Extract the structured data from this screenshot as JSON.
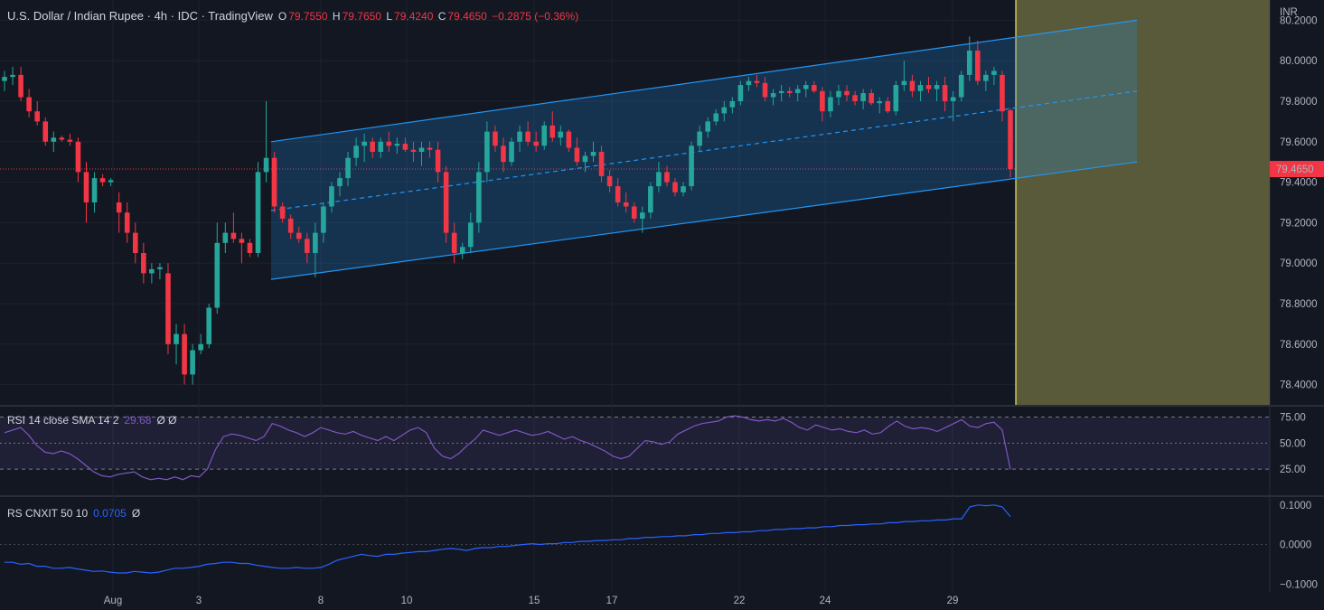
{
  "header": {
    "title": "U.S. Dollar / Indian Rupee · 4h · IDC · TradingView",
    "ohlc": [
      {
        "k": "O",
        "v": "79.7550"
      },
      {
        "k": "H",
        "v": "79.7650"
      },
      {
        "k": "L",
        "v": "79.4240"
      },
      {
        "k": "C",
        "v": "79.4650"
      }
    ],
    "change": "−0.2875 (−0.36%)"
  },
  "price_scale": {
    "currency": "INR",
    "current_price_label": "79.4650",
    "ticks": [
      "80.2000",
      "80.0000",
      "79.8000",
      "79.6000",
      "79.4000",
      "79.2000",
      "79.0000",
      "78.8000",
      "78.6000",
      "78.4000"
    ]
  },
  "rsi_panel": {
    "label": "RSI 14 close SMA 14 2",
    "value": "29.68",
    "extra": "Ø Ø",
    "ticks": [
      "75.00",
      "50.00",
      "25.00"
    ]
  },
  "rs_panel": {
    "label": "RS CNXIT 50 10",
    "value": "0.0705",
    "extra": "Ø",
    "ticks": [
      "0.1000",
      "0.0000",
      "−0.1000"
    ]
  },
  "colors": {
    "background": "#131722",
    "up": "#26a69a",
    "down": "#f23645",
    "channel": "#2196f3",
    "rsi": "#7e57c2",
    "rs": "#2962ff",
    "projection": "#5d5e3c",
    "cursor": "#f5e663"
  },
  "chart_data": [
    {
      "type": "candlestick",
      "title": "U.S. Dollar / Indian Rupee · 4h · IDC · TradingView",
      "x_ticks": [
        "Aug",
        "3",
        "8",
        "10",
        "15",
        "17",
        "22",
        "24",
        "29"
      ],
      "ylim": [
        78.3,
        80.3
      ],
      "current_price": 79.465,
      "candles": [
        [
          79.9,
          79.95,
          79.85,
          79.92
        ],
        [
          79.92,
          79.97,
          79.88,
          79.93
        ],
        [
          79.93,
          79.97,
          79.8,
          79.82
        ],
        [
          79.82,
          79.86,
          79.72,
          79.75
        ],
        [
          79.75,
          79.8,
          79.68,
          79.7
        ],
        [
          79.7,
          79.72,
          79.58,
          79.6
        ],
        [
          79.6,
          79.65,
          79.55,
          79.62
        ],
        [
          79.62,
          79.63,
          79.6,
          79.61
        ],
        [
          79.61,
          79.64,
          79.58,
          79.6
        ],
        [
          79.6,
          79.62,
          79.4,
          79.45
        ],
        [
          79.45,
          79.5,
          79.2,
          79.3
        ],
        [
          79.3,
          79.45,
          79.25,
          79.42
        ],
        [
          79.42,
          79.44,
          79.38,
          79.4
        ],
        [
          79.4,
          79.42,
          79.38,
          79.41
        ],
        [
          79.3,
          79.35,
          79.15,
          79.25
        ],
        [
          79.25,
          79.3,
          79.1,
          79.15
        ],
        [
          79.15,
          79.2,
          79.0,
          79.05
        ],
        [
          79.05,
          79.1,
          78.9,
          78.95
        ],
        [
          78.95,
          79.0,
          78.9,
          78.97
        ],
        [
          78.97,
          79.0,
          78.92,
          78.98
        ],
        [
          78.95,
          79.0,
          78.55,
          78.6
        ],
        [
          78.6,
          78.7,
          78.5,
          78.65
        ],
        [
          78.65,
          78.7,
          78.4,
          78.45
        ],
        [
          78.45,
          78.6,
          78.4,
          78.57
        ],
        [
          78.57,
          78.65,
          78.55,
          78.6
        ],
        [
          78.6,
          78.8,
          78.58,
          78.78
        ],
        [
          78.78,
          79.2,
          78.75,
          79.1
        ],
        [
          79.1,
          79.2,
          79.05,
          79.15
        ],
        [
          79.15,
          79.25,
          79.1,
          79.12
        ],
        [
          79.12,
          79.15,
          79.0,
          79.1
        ],
        [
          79.1,
          79.12,
          79.03,
          79.05
        ],
        [
          79.05,
          79.5,
          79.03,
          79.45
        ],
        [
          79.45,
          79.8,
          79.4,
          79.52
        ],
        [
          79.52,
          79.55,
          79.25,
          79.28
        ],
        [
          79.28,
          79.3,
          79.2,
          79.22
        ],
        [
          79.22,
          79.24,
          79.12,
          79.15
        ],
        [
          79.15,
          79.18,
          79.1,
          79.12
        ],
        [
          79.12,
          79.15,
          79.0,
          79.05
        ],
        [
          79.05,
          79.2,
          78.93,
          79.15
        ],
        [
          79.15,
          79.3,
          79.1,
          79.28
        ],
        [
          79.28,
          79.4,
          79.25,
          79.38
        ],
        [
          79.38,
          79.45,
          79.33,
          79.42
        ],
        [
          79.42,
          79.55,
          79.38,
          79.52
        ],
        [
          79.52,
          79.62,
          79.48,
          79.58
        ],
        [
          79.58,
          79.64,
          79.5,
          79.6
        ],
        [
          79.6,
          79.62,
          79.52,
          79.55
        ],
        [
          79.55,
          79.62,
          79.52,
          79.6
        ],
        [
          79.6,
          79.65,
          79.55,
          79.58
        ],
        [
          79.58,
          79.62,
          79.54,
          79.59
        ],
        [
          79.59,
          79.62,
          79.55,
          79.56
        ],
        [
          79.56,
          79.6,
          79.5,
          79.55
        ],
        [
          79.55,
          79.6,
          79.48,
          79.57
        ],
        [
          79.57,
          79.6,
          79.52,
          79.56
        ],
        [
          79.56,
          79.6,
          79.4,
          79.45
        ],
        [
          79.45,
          79.48,
          79.1,
          79.15
        ],
        [
          79.15,
          79.2,
          79.0,
          79.05
        ],
        [
          79.05,
          79.1,
          79.02,
          79.08
        ],
        [
          79.08,
          79.25,
          79.05,
          79.2
        ],
        [
          79.2,
          79.5,
          79.15,
          79.45
        ],
        [
          79.45,
          79.7,
          79.4,
          79.65
        ],
        [
          79.65,
          79.68,
          79.55,
          79.58
        ],
        [
          79.58,
          79.62,
          79.45,
          79.5
        ],
        [
          79.5,
          79.62,
          79.48,
          79.6
        ],
        [
          79.6,
          79.68,
          79.55,
          79.65
        ],
        [
          79.65,
          79.7,
          79.58,
          79.6
        ],
        [
          79.6,
          79.65,
          79.55,
          79.58
        ],
        [
          79.58,
          79.7,
          79.56,
          79.68
        ],
        [
          79.68,
          79.75,
          79.6,
          79.62
        ],
        [
          79.62,
          79.68,
          79.58,
          79.65
        ],
        [
          79.65,
          79.66,
          79.55,
          79.57
        ],
        [
          79.57,
          79.62,
          79.48,
          79.5
        ],
        [
          79.5,
          79.55,
          79.45,
          79.53
        ],
        [
          79.53,
          79.6,
          79.5,
          79.55
        ],
        [
          79.55,
          79.58,
          79.4,
          79.43
        ],
        [
          79.43,
          79.46,
          79.35,
          79.38
        ],
        [
          79.38,
          79.42,
          79.28,
          79.3
        ],
        [
          79.3,
          79.35,
          79.25,
          79.28
        ],
        [
          79.28,
          79.3,
          79.2,
          79.22
        ],
        [
          79.22,
          79.28,
          79.15,
          79.25
        ],
        [
          79.25,
          79.4,
          79.22,
          79.38
        ],
        [
          79.38,
          79.5,
          79.35,
          79.45
        ],
        [
          79.45,
          79.48,
          79.38,
          79.4
        ],
        [
          79.4,
          79.42,
          79.33,
          79.35
        ],
        [
          79.35,
          79.4,
          79.33,
          79.38
        ],
        [
          79.38,
          79.6,
          79.36,
          79.58
        ],
        [
          79.58,
          79.68,
          79.55,
          79.65
        ],
        [
          79.65,
          79.72,
          79.62,
          79.7
        ],
        [
          79.7,
          79.76,
          79.68,
          79.74
        ],
        [
          79.74,
          79.8,
          79.7,
          79.77
        ],
        [
          79.77,
          79.82,
          79.74,
          79.8
        ],
        [
          79.8,
          79.9,
          79.78,
          79.88
        ],
        [
          79.88,
          79.92,
          79.85,
          79.9
        ],
        [
          79.9,
          79.93,
          79.87,
          79.89
        ],
        [
          79.89,
          79.92,
          79.8,
          79.82
        ],
        [
          79.82,
          79.86,
          79.78,
          79.84
        ],
        [
          79.84,
          79.88,
          79.8,
          79.85
        ],
        [
          79.85,
          79.87,
          79.82,
          79.84
        ],
        [
          79.84,
          79.88,
          79.8,
          79.86
        ],
        [
          79.86,
          79.9,
          79.82,
          79.88
        ],
        [
          79.88,
          79.9,
          79.84,
          79.85
        ],
        [
          79.85,
          79.87,
          79.7,
          79.75
        ],
        [
          79.75,
          79.85,
          79.72,
          79.82
        ],
        [
          79.82,
          79.88,
          79.78,
          79.85
        ],
        [
          79.85,
          79.88,
          79.8,
          79.83
        ],
        [
          79.83,
          79.85,
          79.78,
          79.8
        ],
        [
          79.8,
          79.86,
          79.76,
          79.84
        ],
        [
          79.84,
          79.86,
          79.78,
          79.79
        ],
        [
          79.79,
          79.82,
          79.74,
          79.8
        ],
        [
          79.8,
          79.82,
          79.74,
          79.75
        ],
        [
          79.75,
          79.9,
          79.73,
          79.88
        ],
        [
          79.88,
          80.0,
          79.85,
          79.9
        ],
        [
          79.9,
          79.93,
          79.82,
          79.85
        ],
        [
          79.85,
          79.9,
          79.8,
          79.88
        ],
        [
          79.88,
          79.92,
          79.84,
          79.86
        ],
        [
          79.86,
          79.9,
          79.8,
          79.88
        ],
        [
          79.88,
          79.92,
          79.75,
          79.8
        ],
        [
          79.8,
          79.85,
          79.7,
          79.82
        ],
        [
          79.82,
          79.95,
          79.8,
          79.93
        ],
        [
          79.93,
          80.12,
          79.9,
          80.05
        ],
        [
          80.05,
          80.1,
          79.88,
          79.9
        ],
        [
          79.9,
          79.95,
          79.85,
          79.93
        ],
        [
          79.93,
          79.97,
          79.88,
          79.95
        ],
        [
          79.93,
          79.95,
          79.7,
          79.75
        ],
        [
          79.755,
          79.765,
          79.424,
          79.465
        ]
      ],
      "channel": {
        "upper": [
          79.6,
          80.2
        ],
        "lower": [
          78.92,
          79.5
        ]
      }
    },
    {
      "type": "line",
      "series": [
        {
          "name": "RSI 14 close SMA 14 2",
          "values": [
            58,
            60,
            62,
            56,
            48,
            43,
            42,
            44,
            42,
            38,
            33,
            28,
            25,
            24,
            26,
            27,
            28,
            24,
            22,
            23,
            22,
            24,
            22,
            25,
            24,
            30,
            45,
            55,
            57,
            56,
            54,
            52,
            55,
            65,
            63,
            60,
            58,
            55,
            58,
            62,
            60,
            58,
            57,
            59,
            56,
            54,
            52,
            55,
            52,
            56,
            60,
            62,
            58,
            46,
            40,
            38,
            42,
            48,
            53,
            60,
            58,
            56,
            58,
            60,
            58,
            56,
            57,
            59,
            56,
            53,
            55,
            52,
            50,
            47,
            44,
            40,
            38,
            40,
            46,
            52,
            51,
            49,
            51,
            57,
            60,
            63,
            65,
            66,
            67,
            70,
            71,
            70,
            68,
            67,
            68,
            67,
            69,
            66,
            62,
            60,
            64,
            62,
            60,
            61,
            59,
            58,
            60,
            57,
            58,
            63,
            67,
            63,
            61,
            62,
            61,
            59,
            62,
            65,
            68,
            63,
            62,
            65,
            66,
            60,
            29.68
          ]
        }
      ],
      "ylim": [
        10,
        78
      ],
      "levels": [
        70,
        50,
        30
      ]
    },
    {
      "type": "line",
      "series": [
        {
          "name": "RS CNXIT 50 10",
          "values": [
            -0.045,
            -0.045,
            -0.05,
            -0.048,
            -0.055,
            -0.055,
            -0.06,
            -0.06,
            -0.058,
            -0.062,
            -0.065,
            -0.068,
            -0.067,
            -0.07,
            -0.072,
            -0.072,
            -0.068,
            -0.07,
            -0.072,
            -0.07,
            -0.065,
            -0.06,
            -0.06,
            -0.058,
            -0.055,
            -0.05,
            -0.048,
            -0.045,
            -0.045,
            -0.048,
            -0.048,
            -0.052,
            -0.055,
            -0.058,
            -0.06,
            -0.06,
            -0.058,
            -0.06,
            -0.06,
            -0.058,
            -0.05,
            -0.04,
            -0.035,
            -0.03,
            -0.025,
            -0.028,
            -0.03,
            -0.025,
            -0.025,
            -0.022,
            -0.02,
            -0.018,
            -0.018,
            -0.015,
            -0.012,
            -0.01,
            -0.012,
            -0.015,
            -0.01,
            -0.008,
            -0.008,
            -0.005,
            -0.005,
            -0.002,
            0.0,
            0.002,
            0.0,
            0.002,
            0.002,
            0.005,
            0.005,
            0.008,
            0.008,
            0.01,
            0.01,
            0.012,
            0.012,
            0.015,
            0.015,
            0.018,
            0.018,
            0.02,
            0.02,
            0.022,
            0.022,
            0.025,
            0.025,
            0.028,
            0.028,
            0.03,
            0.03,
            0.032,
            0.032,
            0.035,
            0.035,
            0.038,
            0.038,
            0.04,
            0.04,
            0.042,
            0.042,
            0.045,
            0.045,
            0.048,
            0.048,
            0.05,
            0.05,
            0.052,
            0.052,
            0.055,
            0.055,
            0.058,
            0.058,
            0.06,
            0.06,
            0.062,
            0.062,
            0.065,
            0.065,
            0.095,
            0.1,
            0.098,
            0.1,
            0.095,
            0.0705
          ]
        }
      ],
      "ylim": [
        -0.12,
        0.12
      ],
      "levels": [
        0
      ]
    }
  ]
}
